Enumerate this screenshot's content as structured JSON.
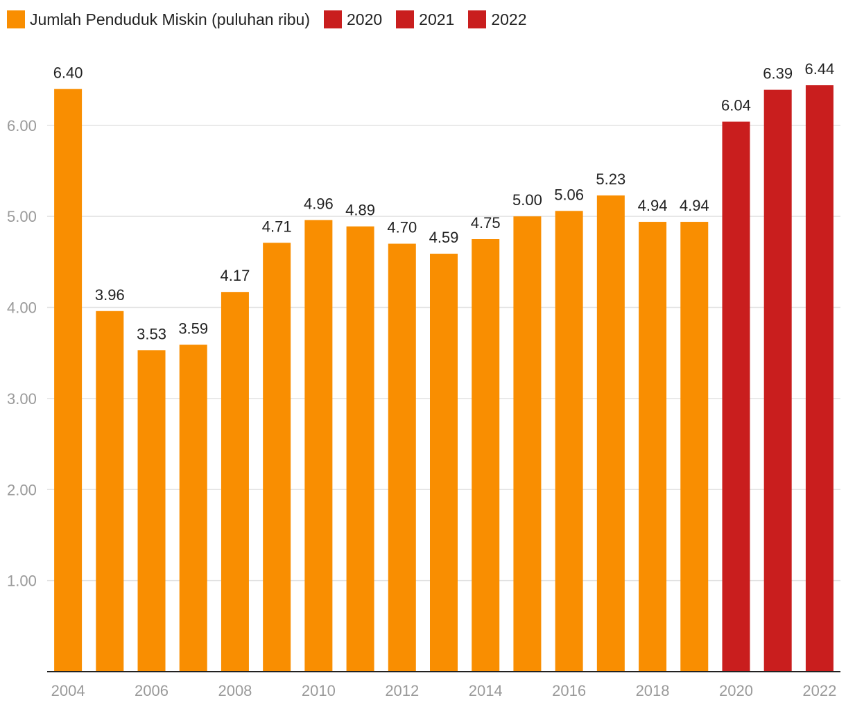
{
  "chart_data": {
    "type": "bar",
    "title": "",
    "xlabel": "",
    "ylabel": "",
    "ylim": [
      0,
      6.44
    ],
    "y_ticks": [
      "1.00",
      "2.00",
      "3.00",
      "4.00",
      "5.00",
      "6.00"
    ],
    "y_tick_values": [
      1,
      2,
      3,
      4,
      5,
      6
    ],
    "grid": true,
    "legend_position": "top-left",
    "categories": [
      "2004",
      "2005",
      "2006",
      "2007",
      "2008",
      "2009",
      "2010",
      "2011",
      "2012",
      "2013",
      "2014",
      "2015",
      "2016",
      "2017",
      "2018",
      "2019",
      "2020",
      "2021",
      "2022"
    ],
    "x_tick_labels": [
      "2004",
      "",
      "2006",
      "",
      "2008",
      "",
      "2010",
      "",
      "2012",
      "",
      "2014",
      "",
      "2016",
      "",
      "2018",
      "",
      "2020",
      "",
      "2022"
    ],
    "values": [
      6.4,
      3.96,
      3.53,
      3.59,
      4.17,
      4.71,
      4.96,
      4.89,
      4.7,
      4.59,
      4.75,
      5.0,
      5.06,
      5.23,
      4.94,
      4.94,
      6.04,
      6.39,
      6.44
    ],
    "value_labels": [
      "6.40",
      "3.96",
      "3.53",
      "3.59",
      "4.17",
      "4.71",
      "4.96",
      "4.89",
      "4.70",
      "4.59",
      "4.75",
      "5.00",
      "5.06",
      "5.23",
      "4.94",
      "4.94",
      "6.04",
      "6.39",
      "6.44"
    ],
    "bar_colors": [
      "#f98e01",
      "#f98e01",
      "#f98e01",
      "#f98e01",
      "#f98e01",
      "#f98e01",
      "#f98e01",
      "#f98e01",
      "#f98e01",
      "#f98e01",
      "#f98e01",
      "#f98e01",
      "#f98e01",
      "#f98e01",
      "#f98e01",
      "#f98e01",
      "#c91e1e",
      "#c91e1e",
      "#c91e1e"
    ],
    "legend": [
      {
        "label": "Jumlah Penduduk Miskin (puluhan ribu)",
        "color": "#f98e01"
      },
      {
        "label": "2020",
        "color": "#c91e1e"
      },
      {
        "label": "2021",
        "color": "#c91e1e"
      },
      {
        "label": "2022",
        "color": "#c91e1e"
      }
    ]
  }
}
